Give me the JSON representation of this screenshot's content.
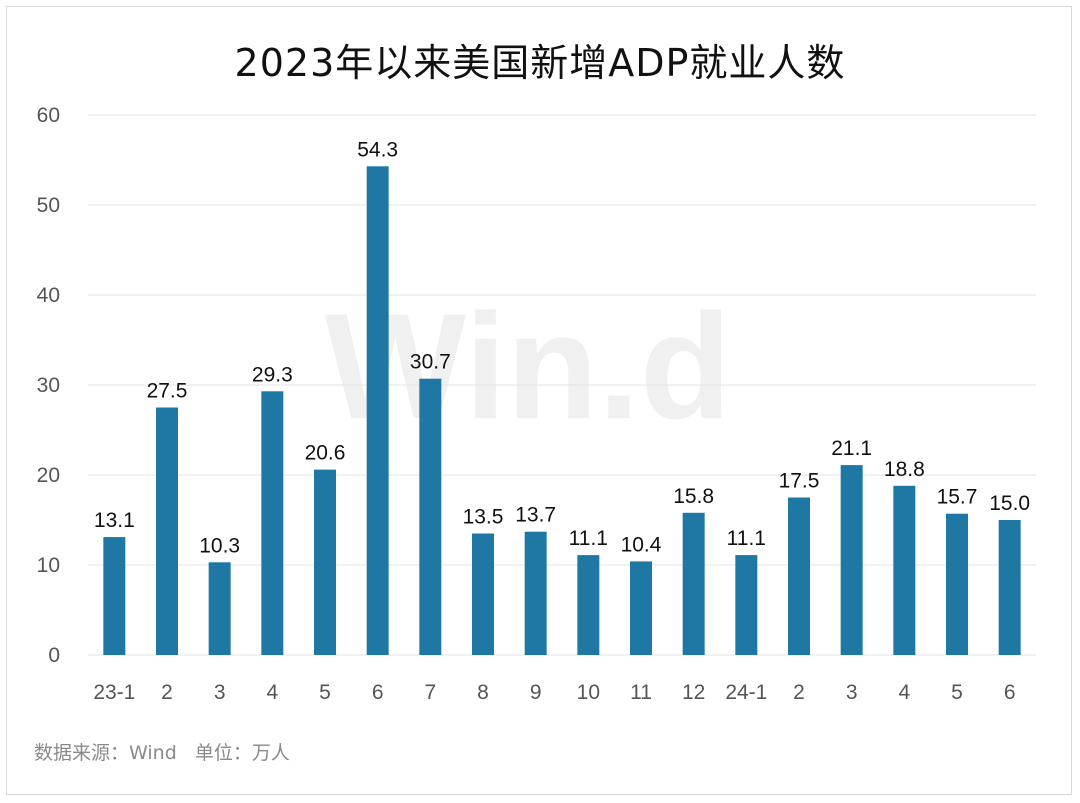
{
  "title": "2023年以来美国新增ADP就业人数",
  "source_note": "数据来源：Wind   单位：万人",
  "watermark": "Win.d",
  "colors": {
    "bar": "#1f78a4",
    "grid": "#e3e3e3",
    "axis_text": "#555555",
    "label_text": "#111111",
    "watermark": "#f0f0f0"
  },
  "chart_data": {
    "type": "bar",
    "title": "2023年以来美国新增ADP就业人数",
    "xlabel": "",
    "ylabel": "",
    "ylim": [
      0,
      60
    ],
    "yticks": [
      0,
      10,
      20,
      30,
      40,
      50,
      60
    ],
    "grid": true,
    "legend": "none",
    "categories": [
      "23-1",
      "2",
      "3",
      "4",
      "5",
      "6",
      "7",
      "8",
      "9",
      "10",
      "11",
      "12",
      "24-1",
      "2",
      "3",
      "4",
      "5",
      "6"
    ],
    "values": [
      13.1,
      27.5,
      10.3,
      29.3,
      20.6,
      54.3,
      30.7,
      13.5,
      13.7,
      11.1,
      10.4,
      15.8,
      11.1,
      17.5,
      21.1,
      18.8,
      15.7,
      15.0
    ],
    "data_labels": [
      "13.1",
      "27.5",
      "10.3",
      "29.3",
      "20.6",
      "54.3",
      "30.7",
      "13.5",
      "13.7",
      "11.1",
      "10.4",
      "15.8",
      "11.1",
      "17.5",
      "21.1",
      "18.8",
      "15.7",
      "15.0"
    ]
  }
}
